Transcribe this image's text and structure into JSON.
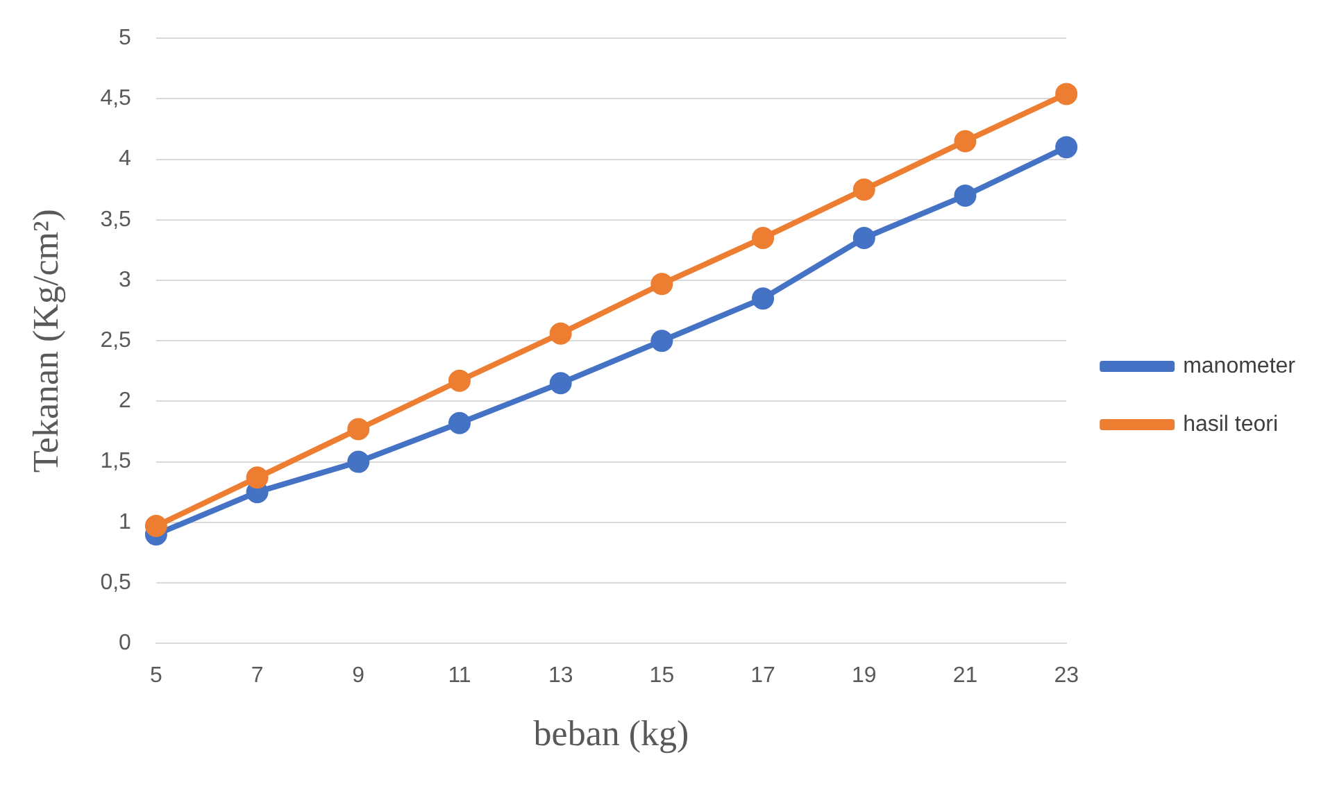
{
  "chart_data": {
    "type": "line",
    "xlabel": "beban (kg)",
    "ylabel": "Tekanan (Kg/cm²)",
    "categories": [
      "5",
      "7",
      "9",
      "11",
      "13",
      "15",
      "17",
      "19",
      "21",
      "23"
    ],
    "series": [
      {
        "name": "manometer",
        "color": "#4472c4",
        "values": [
          0.9,
          1.25,
          1.5,
          1.82,
          2.15,
          2.5,
          2.85,
          3.35,
          3.7,
          4.1
        ]
      },
      {
        "name": "hasil teori",
        "color": "#ed7d31",
        "values": [
          0.97,
          1.37,
          1.77,
          2.17,
          2.56,
          2.97,
          3.35,
          3.75,
          4.15,
          4.54
        ]
      }
    ],
    "ylim": [
      0,
      5
    ],
    "yticks": [
      0,
      {
        "value": 0.5,
        "label": "0,5"
      },
      1,
      {
        "value": 1.5,
        "label": "1,5"
      },
      2,
      {
        "value": 2.5,
        "label": "2,5"
      },
      3,
      {
        "value": 3.5,
        "label": "3,5"
      },
      4,
      {
        "value": 4.5,
        "label": "4,5"
      },
      5
    ],
    "grid": "y",
    "legend": "right",
    "marker": "circle",
    "line_style": "solid"
  }
}
